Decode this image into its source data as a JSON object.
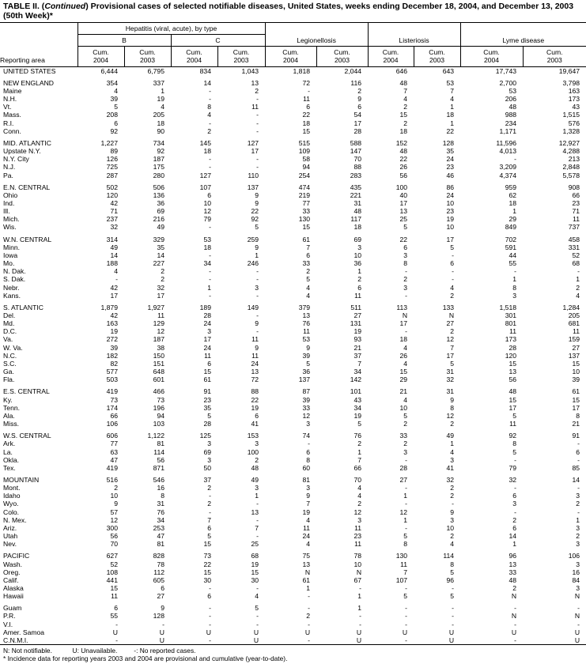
{
  "title_prefix": "TABLE II. (",
  "title_italic": "Continued",
  "title_rest": ") Provisional cases of selected notifiable diseases, United States, weeks ending December 18, 2004, and December 13, 2003 (50th Week)*",
  "header": {
    "reporting_area": "Reporting area",
    "hepatitis": "Hepatitis (viral, acute), by type",
    "b": "B",
    "c": "C",
    "legionellosis": "Legionellosis",
    "listeriosis": "Listeriosis",
    "lyme": "Lyme disease",
    "cols": [
      "Cum.\n2004",
      "Cum.\n2003",
      "Cum.\n2004",
      "Cum.\n2003",
      "Cum.\n2004",
      "Cum.\n2003",
      "Cum.\n2004",
      "Cum.\n2003",
      "Cum.\n2004",
      "Cum.\n2003"
    ]
  },
  "groups": [
    [
      [
        "UNITED STATES",
        "6,444",
        "6,795",
        "834",
        "1,043",
        "1,818",
        "2,044",
        "646",
        "643",
        "17,743",
        "19,647"
      ]
    ],
    [
      [
        "NEW ENGLAND",
        "354",
        "337",
        "14",
        "13",
        "72",
        "116",
        "48",
        "53",
        "2,700",
        "3,798"
      ],
      [
        "Maine",
        "4",
        "1",
        "-",
        "2",
        "-",
        "2",
        "7",
        "7",
        "53",
        "163"
      ],
      [
        "N.H.",
        "39",
        "19",
        "-",
        "-",
        "11",
        "9",
        "4",
        "4",
        "206",
        "173"
      ],
      [
        "Vt.",
        "5",
        "4",
        "8",
        "11",
        "6",
        "6",
        "2",
        "1",
        "48",
        "43"
      ],
      [
        "Mass.",
        "208",
        "205",
        "4",
        "-",
        "22",
        "54",
        "15",
        "18",
        "988",
        "1,515"
      ],
      [
        "R.I.",
        "6",
        "18",
        "-",
        "-",
        "18",
        "17",
        "2",
        "1",
        "234",
        "576"
      ],
      [
        "Conn.",
        "92",
        "90",
        "2",
        "-",
        "15",
        "28",
        "18",
        "22",
        "1,171",
        "1,328"
      ]
    ],
    [
      [
        "MID. ATLANTIC",
        "1,227",
        "734",
        "145",
        "127",
        "515",
        "588",
        "152",
        "128",
        "11,596",
        "12,927"
      ],
      [
        "Upstate N.Y.",
        "89",
        "92",
        "18",
        "17",
        "109",
        "147",
        "48",
        "35",
        "4,013",
        "4,288"
      ],
      [
        "N.Y. City",
        "126",
        "187",
        "-",
        "-",
        "58",
        "70",
        "22",
        "24",
        "-",
        "213"
      ],
      [
        "N.J.",
        "725",
        "175",
        "-",
        "-",
        "94",
        "88",
        "26",
        "23",
        "3,209",
        "2,848"
      ],
      [
        "Pa.",
        "287",
        "280",
        "127",
        "110",
        "254",
        "283",
        "56",
        "46",
        "4,374",
        "5,578"
      ]
    ],
    [
      [
        "E.N. CENTRAL",
        "502",
        "506",
        "107",
        "137",
        "474",
        "435",
        "100",
        "86",
        "959",
        "908"
      ],
      [
        "Ohio",
        "120",
        "136",
        "6",
        "9",
        "219",
        "221",
        "40",
        "24",
        "62",
        "66"
      ],
      [
        "Ind.",
        "42",
        "36",
        "10",
        "9",
        "77",
        "31",
        "17",
        "10",
        "18",
        "23"
      ],
      [
        "Ill.",
        "71",
        "69",
        "12",
        "22",
        "33",
        "48",
        "13",
        "23",
        "1",
        "71"
      ],
      [
        "Mich.",
        "237",
        "216",
        "79",
        "92",
        "130",
        "117",
        "25",
        "19",
        "29",
        "11"
      ],
      [
        "Wis.",
        "32",
        "49",
        "-",
        "5",
        "15",
        "18",
        "5",
        "10",
        "849",
        "737"
      ]
    ],
    [
      [
        "W.N. CENTRAL",
        "314",
        "329",
        "53",
        "259",
        "61",
        "69",
        "22",
        "17",
        "702",
        "458"
      ],
      [
        "Minn.",
        "49",
        "35",
        "18",
        "9",
        "7",
        "3",
        "6",
        "5",
        "591",
        "331"
      ],
      [
        "Iowa",
        "14",
        "14",
        "-",
        "1",
        "6",
        "10",
        "3",
        "-",
        "44",
        "52"
      ],
      [
        "Mo.",
        "188",
        "227",
        "34",
        "246",
        "33",
        "36",
        "8",
        "6",
        "55",
        "68"
      ],
      [
        "N. Dak.",
        "4",
        "2",
        "-",
        "-",
        "2",
        "1",
        "-",
        "-",
        "-",
        "-"
      ],
      [
        "S. Dak.",
        "-",
        "2",
        "-",
        "-",
        "5",
        "2",
        "2",
        "-",
        "1",
        "1"
      ],
      [
        "Nebr.",
        "42",
        "32",
        "1",
        "3",
        "4",
        "6",
        "3",
        "4",
        "8",
        "2"
      ],
      [
        "Kans.",
        "17",
        "17",
        "-",
        "-",
        "4",
        "11",
        "-",
        "2",
        "3",
        "4"
      ]
    ],
    [
      [
        "S. ATLANTIC",
        "1,879",
        "1,927",
        "189",
        "149",
        "379",
        "511",
        "113",
        "133",
        "1,518",
        "1,284"
      ],
      [
        "Del.",
        "42",
        "11",
        "28",
        "-",
        "13",
        "27",
        "N",
        "N",
        "301",
        "205"
      ],
      [
        "Md.",
        "163",
        "129",
        "24",
        "9",
        "76",
        "131",
        "17",
        "27",
        "801",
        "681"
      ],
      [
        "D.C.",
        "19",
        "12",
        "3",
        "-",
        "11",
        "19",
        "-",
        "2",
        "11",
        "11"
      ],
      [
        "Va.",
        "272",
        "187",
        "17",
        "11",
        "53",
        "93",
        "18",
        "12",
        "173",
        "159"
      ],
      [
        "W. Va.",
        "39",
        "38",
        "24",
        "9",
        "9",
        "21",
        "4",
        "7",
        "28",
        "27"
      ],
      [
        "N.C.",
        "182",
        "150",
        "11",
        "11",
        "39",
        "37",
        "26",
        "17",
        "120",
        "137"
      ],
      [
        "S.C.",
        "82",
        "151",
        "6",
        "24",
        "5",
        "7",
        "4",
        "5",
        "15",
        "15"
      ],
      [
        "Ga.",
        "577",
        "648",
        "15",
        "13",
        "36",
        "34",
        "15",
        "31",
        "13",
        "10"
      ],
      [
        "Fla.",
        "503",
        "601",
        "61",
        "72",
        "137",
        "142",
        "29",
        "32",
        "56",
        "39"
      ]
    ],
    [
      [
        "E.S. CENTRAL",
        "419",
        "466",
        "91",
        "88",
        "87",
        "101",
        "21",
        "31",
        "48",
        "61"
      ],
      [
        "Ky.",
        "73",
        "73",
        "23",
        "22",
        "39",
        "43",
        "4",
        "9",
        "15",
        "15"
      ],
      [
        "Tenn.",
        "174",
        "196",
        "35",
        "19",
        "33",
        "34",
        "10",
        "8",
        "17",
        "17"
      ],
      [
        "Ala.",
        "66",
        "94",
        "5",
        "6",
        "12",
        "19",
        "5",
        "12",
        "5",
        "8"
      ],
      [
        "Miss.",
        "106",
        "103",
        "28",
        "41",
        "3",
        "5",
        "2",
        "2",
        "11",
        "21"
      ]
    ],
    [
      [
        "W.S. CENTRAL",
        "606",
        "1,122",
        "125",
        "153",
        "74",
        "76",
        "33",
        "49",
        "92",
        "91"
      ],
      [
        "Ark.",
        "77",
        "81",
        "3",
        "3",
        "-",
        "2",
        "2",
        "1",
        "8",
        "-"
      ],
      [
        "La.",
        "63",
        "114",
        "69",
        "100",
        "6",
        "1",
        "3",
        "4",
        "5",
        "6"
      ],
      [
        "Okla.",
        "47",
        "56",
        "3",
        "2",
        "8",
        "7",
        "-",
        "3",
        "-",
        "-"
      ],
      [
        "Tex.",
        "419",
        "871",
        "50",
        "48",
        "60",
        "66",
        "28",
        "41",
        "79",
        "85"
      ]
    ],
    [
      [
        "MOUNTAIN",
        "516",
        "546",
        "37",
        "49",
        "81",
        "70",
        "27",
        "32",
        "32",
        "14"
      ],
      [
        "Mont.",
        "2",
        "16",
        "2",
        "3",
        "3",
        "4",
        "-",
        "2",
        "-",
        "-"
      ],
      [
        "Idaho",
        "10",
        "8",
        "-",
        "1",
        "9",
        "4",
        "1",
        "2",
        "6",
        "3"
      ],
      [
        "Wyo.",
        "9",
        "31",
        "2",
        "-",
        "7",
        "2",
        "-",
        "-",
        "3",
        "2"
      ],
      [
        "Colo.",
        "57",
        "76",
        "-",
        "13",
        "19",
        "12",
        "12",
        "9",
        "-",
        "-"
      ],
      [
        "N. Mex.",
        "12",
        "34",
        "7",
        "-",
        "4",
        "3",
        "1",
        "3",
        "2",
        "1"
      ],
      [
        "Ariz.",
        "300",
        "253",
        "6",
        "7",
        "11",
        "11",
        "-",
        "10",
        "6",
        "3"
      ],
      [
        "Utah",
        "56",
        "47",
        "5",
        "-",
        "24",
        "23",
        "5",
        "2",
        "14",
        "2"
      ],
      [
        "Nev.",
        "70",
        "81",
        "15",
        "25",
        "4",
        "11",
        "8",
        "4",
        "1",
        "3"
      ]
    ],
    [
      [
        "PACIFIC",
        "627",
        "828",
        "73",
        "68",
        "75",
        "78",
        "130",
        "114",
        "96",
        "106"
      ],
      [
        "Wash.",
        "52",
        "78",
        "22",
        "19",
        "13",
        "10",
        "11",
        "8",
        "13",
        "3"
      ],
      [
        "Oreg.",
        "108",
        "112",
        "15",
        "15",
        "N",
        "N",
        "7",
        "5",
        "33",
        "16"
      ],
      [
        "Calif.",
        "441",
        "605",
        "30",
        "30",
        "61",
        "67",
        "107",
        "96",
        "48",
        "84"
      ],
      [
        "Alaska",
        "15",
        "6",
        "-",
        "-",
        "1",
        "-",
        "-",
        "-",
        "2",
        "3"
      ],
      [
        "Hawaii",
        "11",
        "27",
        "6",
        "4",
        "-",
        "1",
        "5",
        "5",
        "N",
        "N"
      ]
    ],
    [
      [
        "Guam",
        "6",
        "9",
        "-",
        "5",
        "-",
        "1",
        "-",
        "-",
        "-",
        "-"
      ],
      [
        "P.R.",
        "55",
        "128",
        "-",
        "-",
        "2",
        "-",
        "-",
        "-",
        "N",
        "N"
      ],
      [
        "V.I.",
        "-",
        "-",
        "-",
        "-",
        "-",
        "-",
        "-",
        "-",
        "-",
        "-"
      ],
      [
        "Amer. Samoa",
        "U",
        "U",
        "U",
        "U",
        "U",
        "U",
        "U",
        "U",
        "U",
        "U"
      ],
      [
        "C.N.M.I.",
        "-",
        "U",
        "-",
        "U",
        "-",
        "U",
        "-",
        "U",
        "-",
        "U"
      ]
    ]
  ],
  "footnotes": {
    "n": "N: Not notifiable.",
    "u": "U: Unavailable.",
    "dash": "-: No reported cases.",
    "star": "* Incidence data for reporting years 2003 and 2004 are provisional and cumulative (year-to-date)."
  }
}
